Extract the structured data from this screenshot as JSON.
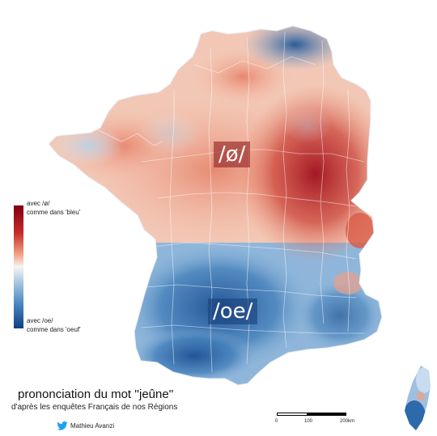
{
  "labels": {
    "eu": "/ø/",
    "oe": "/oe/"
  },
  "legend": {
    "top_line1": "avec /ø/",
    "top_line2": "comme dans 'bleu'",
    "bottom_line1": "avec /oe/",
    "bottom_line2": "comme dans 'oeuf'",
    "color_top": "#7f0010",
    "color_bottom": "#0f3f84"
  },
  "title": "prononciation du mot ''jeûne''",
  "subtitle": "d'après les enquêtes Français de nos Régions",
  "author": "Mathieu Avanzi",
  "author_icon": "twitter-bird-icon",
  "scale": {
    "tick0": "0",
    "tick1": "100",
    "tick2": "200km"
  }
}
